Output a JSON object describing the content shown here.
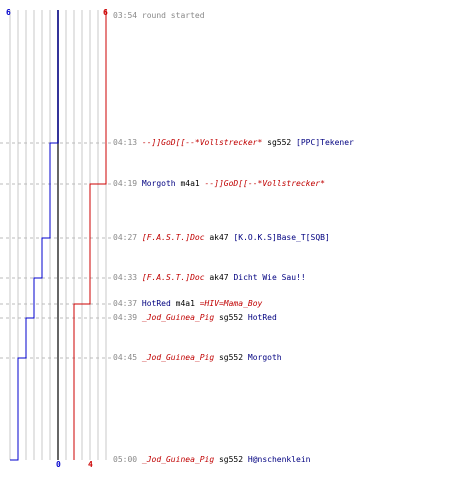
{
  "colors": {
    "blue_team": "#0000cc",
    "red_team": "#cc0000",
    "divider": "#666666",
    "grid": "#c8c8c8",
    "time": "#888888"
  },
  "scores": {
    "blue_start": "6",
    "red_start": "6",
    "blue_end": "0",
    "red_end": "4"
  },
  "events": [
    {
      "time": "03:54",
      "parts": [
        {
          "text": "round started",
          "cls": "gray"
        }
      ]
    },
    {
      "time": "04:13",
      "parts": [
        {
          "text": "--]]GoD[[--*Vollstrecker*",
          "cls": "red"
        },
        {
          "text": " sg552 ",
          "cls": "weapon"
        },
        {
          "text": "[PPC]Tekener",
          "cls": "blue"
        }
      ]
    },
    {
      "time": "04:19",
      "parts": [
        {
          "text": "Morgoth",
          "cls": "blue"
        },
        {
          "text": " m4a1 ",
          "cls": "weapon"
        },
        {
          "text": "--]]GoD[[--*Vollstrecker*",
          "cls": "red"
        }
      ]
    },
    {
      "time": "04:27",
      "parts": [
        {
          "text": "[F.A.S.T.]Doc",
          "cls": "red"
        },
        {
          "text": " ak47 ",
          "cls": "weapon"
        },
        {
          "text": "[K.O.K.S]Base_T[SQB]",
          "cls": "blue"
        }
      ]
    },
    {
      "time": "04:33",
      "parts": [
        {
          "text": "[F.A.S.T.]Doc",
          "cls": "red"
        },
        {
          "text": " ak47 ",
          "cls": "weapon"
        },
        {
          "text": "Dicht Wie Sau!!",
          "cls": "blue"
        }
      ]
    },
    {
      "time": "04:37",
      "parts": [
        {
          "text": "HotRed",
          "cls": "blue"
        },
        {
          "text": " m4a1 ",
          "cls": "weapon"
        },
        {
          "text": "=HIV=Mama_Boy",
          "cls": "red"
        }
      ]
    },
    {
      "time": "04:39",
      "parts": [
        {
          "text": "_Jod_Guinea_Pig",
          "cls": "red"
        },
        {
          "text": " sg552 ",
          "cls": "weapon"
        },
        {
          "text": "HotRed",
          "cls": "blue"
        }
      ]
    },
    {
      "time": "04:45",
      "parts": [
        {
          "text": "_Jod_Guinea_Pig",
          "cls": "red"
        },
        {
          "text": " sg552 ",
          "cls": "weapon"
        },
        {
          "text": "Morgoth",
          "cls": "blue"
        }
      ]
    },
    {
      "time": "05:00",
      "parts": [
        {
          "text": "_Jod_Guinea_Pig",
          "cls": "red"
        },
        {
          "text": " sg552 ",
          "cls": "weapon"
        },
        {
          "text": "H@nschenklein",
          "cls": "blue"
        }
      ]
    }
  ],
  "chart_data": {
    "type": "line",
    "xlabel": "",
    "ylabel": "",
    "series": [
      {
        "values": [
          6,
          5,
          5,
          4,
          3,
          3,
          2,
          1,
          0
        ]
      },
      {
        "values": [
          6,
          6,
          5,
          5,
          5,
          4,
          4,
          4,
          4
        ]
      }
    ],
    "xlim": [
      0,
      12
    ],
    "grid": true
  }
}
